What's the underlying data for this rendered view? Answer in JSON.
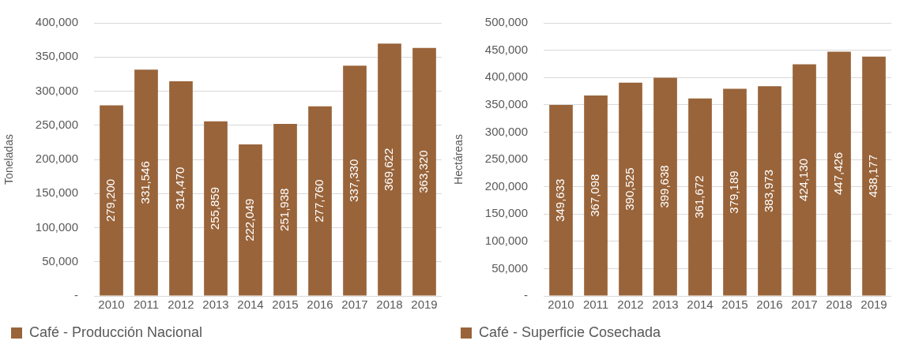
{
  "chart_data": [
    {
      "type": "bar",
      "ylabel": "Toneladas",
      "categories": [
        "2010",
        "2011",
        "2012",
        "2013",
        "2014",
        "2015",
        "2016",
        "2017",
        "2018",
        "2019"
      ],
      "series": [
        {
          "name": "Café - Producción Nacional",
          "color": "#99643a",
          "values": [
            279200,
            331546,
            314470,
            255859,
            222049,
            251938,
            277760,
            337330,
            369622,
            363320
          ],
          "value_labels": [
            "279,200",
            "331,546",
            "314,470",
            "255,859",
            "222,049",
            "251,938",
            "277,760",
            "337,330",
            "369,622",
            "363,320"
          ]
        }
      ],
      "ylim": [
        0,
        400000
      ],
      "yticks": [
        {
          "value": 0,
          "label": "-"
        },
        {
          "value": 50000,
          "label": "50,000"
        },
        {
          "value": 100000,
          "label": "100,000"
        },
        {
          "value": 150000,
          "label": "150,000"
        },
        {
          "value": 200000,
          "label": "200,000"
        },
        {
          "value": 250000,
          "label": "250,000"
        },
        {
          "value": 300000,
          "label": "300,000"
        },
        {
          "value": 350000,
          "label": "350,000"
        },
        {
          "value": 400000,
          "label": "400,000"
        }
      ],
      "grid": "y",
      "legend": "bottom"
    },
    {
      "type": "bar",
      "ylabel": "Hectáreas",
      "categories": [
        "2010",
        "2011",
        "2012",
        "2013",
        "2014",
        "2015",
        "2016",
        "2017",
        "2018",
        "2019"
      ],
      "series": [
        {
          "name": "Café - Superficie Cosechada",
          "color": "#99643a",
          "values": [
            349633,
            367098,
            390525,
            399638,
            361672,
            379189,
            383973,
            424130,
            447426,
            438177
          ],
          "value_labels": [
            "349,633",
            "367,098",
            "390,525",
            "399,638",
            "361,672",
            "379,189",
            "383,973",
            "424,130",
            "447,426",
            "438,177"
          ]
        }
      ],
      "ylim": [
        0,
        500000
      ],
      "yticks": [
        {
          "value": 0,
          "label": "-"
        },
        {
          "value": 50000,
          "label": "50,000"
        },
        {
          "value": 100000,
          "label": "100,000"
        },
        {
          "value": 150000,
          "label": "150,000"
        },
        {
          "value": 200000,
          "label": "200,000"
        },
        {
          "value": 250000,
          "label": "250,000"
        },
        {
          "value": 300000,
          "label": "300,000"
        },
        {
          "value": 350000,
          "label": "350,000"
        },
        {
          "value": 400000,
          "label": "400,000"
        },
        {
          "value": 450000,
          "label": "450,000"
        },
        {
          "value": 500000,
          "label": "500,000"
        }
      ],
      "grid": "y",
      "legend": "bottom"
    }
  ]
}
